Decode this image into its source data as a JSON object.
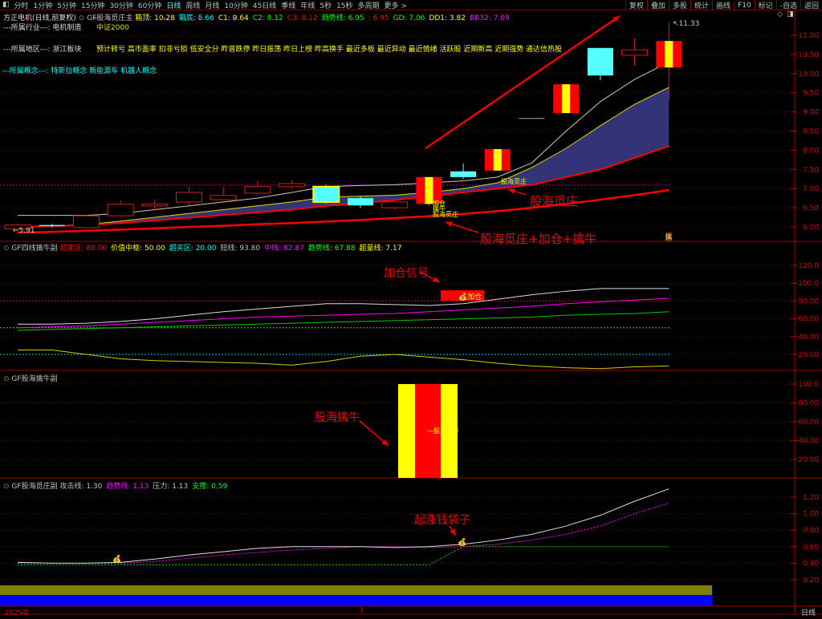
{
  "toolbar": {
    "menu_icon": "panel-toggle-icon",
    "periods": [
      "分时",
      "1分钟",
      "5分钟",
      "15分钟",
      "30分钟",
      "60分钟",
      "日线",
      "周线",
      "月线",
      "10分钟",
      "45日线",
      "季线",
      "年线",
      "5秒",
      "15秒",
      "多周期",
      "更多 >"
    ],
    "active": "日线",
    "right_buttons": [
      "复权",
      "叠加",
      "多股",
      "统计",
      "画线",
      "F10",
      "标记",
      "-自选",
      "返回"
    ]
  },
  "header": {
    "stock": "方正电机(日线,前复权)",
    "indicator": "GF股海觅庄主",
    "values": [
      {
        "label": "箱顶: 10.28",
        "color": "#ffff00"
      },
      {
        "label": "箱底: 5.66",
        "color": "#00ffff"
      },
      {
        "label": "C1: 9.64",
        "color": "#ffff00"
      },
      {
        "label": "C2: 8.12",
        "color": "#00ff00"
      },
      {
        "label": "C3: 8.12",
        "color": "#ff0000"
      },
      {
        "label": "趋势线: 6.95",
        "color": "#00ff00"
      },
      {
        "label": ": 6.95",
        "color": "#ff0000"
      },
      {
        "label": "GD: 7.06",
        "color": "#00ff00"
      },
      {
        "label": "DD1: 3.82",
        "color": "#ffff00"
      },
      {
        "label": "BB32: 7.09",
        "color": "#ff00ff"
      }
    ]
  },
  "info": {
    "industry_label": "---所属行业---:",
    "industry": "电机制造",
    "index": "中证2000",
    "region_label": "---所属地区---:",
    "region": "浙江板块",
    "tags": "预计转亏 高市盈率 扣非亏损 低安全分 昨曾跌停 昨日振荡 昨日上榜 昨高换手 最近多板 最近异动 最近情绪 活跃股 近期新高 近期强势 通达信热股",
    "concept_label": "---所属概念---:",
    "concepts": "特斯拉概念 新能源车 机器人概念"
  },
  "annotations": {
    "main1": "股海觅庄",
    "main2": "股海觅庄+加仓+擒牛",
    "small1": "股海觅庄",
    "small2": "加仓",
    "small3": "擒牛",
    "small4": "股海觅庄",
    "high": "11.33",
    "low": "5.91",
    "sig": "擒",
    "p2": "加仓信号",
    "p2_tag": "加仓",
    "p3": "股海擒牛",
    "p3_mid": "—股海擒牛",
    "p4": "起涨钱袋子"
  },
  "main_axis": [
    "11.00",
    "10.50",
    "10.00",
    "9.50",
    "9.00",
    "8.50",
    "8.00",
    "7.50",
    "7.00",
    "6.50",
    "6.00"
  ],
  "panel2": {
    "title": "GF四线擒牛副",
    "values": [
      {
        "label": "超卖区: 80.00",
        "color": "#ff0000"
      },
      {
        "label": "价值中枢: 50.00",
        "color": "#ffff00"
      },
      {
        "label": "超买区: 20.00",
        "color": "#00ffff"
      },
      {
        "label": "短线: 93.80",
        "color": "#c0c0c0"
      },
      {
        "label": "中线: 82.87",
        "color": "#ff00ff"
      },
      {
        "label": "趋势线: 67.88",
        "color": "#00ff00"
      },
      {
        "label": "超量线: 7.17",
        "color": "#ffff00"
      }
    ],
    "axis": [
      "120.0",
      "100.0",
      "80.00",
      "60.00",
      "40.00",
      "20.00"
    ]
  },
  "panel3": {
    "title": "GF股海擒牛副",
    "axis": [
      "100.0",
      "80.00",
      "60.00",
      "40.00",
      "20.00"
    ]
  },
  "panel4": {
    "title": "GF股海觅庄副",
    "values": [
      {
        "label": "攻击线: 1.30",
        "color": "#c0c0c0"
      },
      {
        "label": "趋势线: 1.13",
        "color": "#ff00ff"
      },
      {
        "label": "压力: 1.13",
        "color": "#c0c0c0"
      },
      {
        "label": "支撑: 0.59",
        "color": "#00ff00"
      }
    ],
    "axis": [
      "1.20",
      "1.00",
      "0.80",
      "0.60",
      "0.40",
      "0.20"
    ]
  },
  "timeline": {
    "year": "2025年",
    "month": "3",
    "period": "日线"
  },
  "chart_data": {
    "type": "candlestick",
    "candles": [
      [
        5.95,
        6.08,
        5.91,
        6.05
      ],
      [
        6.05,
        6.08,
        5.98,
        6.02
      ],
      [
        5.98,
        6.31,
        5.98,
        6.29
      ],
      [
        6.29,
        6.69,
        6.29,
        6.59
      ],
      [
        6.55,
        6.72,
        6.42,
        6.6
      ],
      [
        6.65,
        7.05,
        6.55,
        6.9
      ],
      [
        6.71,
        7.05,
        6.71,
        6.82
      ],
      [
        6.88,
        7.2,
        6.85,
        7.05
      ],
      [
        7.05,
        7.23,
        7.0,
        7.13
      ],
      [
        7.05,
        7.1,
        6.6,
        6.65
      ],
      [
        6.75,
        6.8,
        6.5,
        6.56
      ],
      [
        6.5,
        6.72,
        6.45,
        6.65
      ],
      [
        6.6,
        7.3,
        6.55,
        7.3
      ],
      [
        7.45,
        7.66,
        7.25,
        7.3
      ],
      [
        7.47,
        8.03,
        7.47,
        8.03
      ],
      [
        8.83,
        8.83,
        8.83,
        8.83
      ],
      [
        8.97,
        9.72,
        8.97,
        9.72
      ],
      [
        10.67,
        10.67,
        9.83,
        9.95
      ],
      [
        10.48,
        10.93,
        10.2,
        10.62
      ],
      [
        10.16,
        11.33,
        9.3,
        10.85
      ]
    ],
    "white_line": [
      6.3,
      6.3,
      6.3,
      6.35,
      6.45,
      6.55,
      6.65,
      6.75,
      6.9,
      7.05,
      7.08,
      7.1,
      7.15,
      7.2,
      7.3,
      7.67,
      8.5,
      9.27,
      9.85,
      10.3
    ],
    "yellow_line": [
      6.0,
      6.03,
      6.06,
      6.15,
      6.25,
      6.35,
      6.45,
      6.55,
      6.65,
      6.78,
      6.8,
      6.83,
      6.9,
      7.0,
      7.15,
      7.55,
      8.05,
      8.64,
      9.2,
      9.64
    ],
    "red_upper": [
      6.0,
      6.02,
      6.05,
      6.1,
      6.17,
      6.24,
      6.31,
      6.38,
      6.45,
      6.55,
      6.62,
      6.7,
      6.8,
      6.9,
      7.0,
      7.1,
      7.3,
      7.5,
      7.8,
      8.11
    ],
    "red_lower": [
      5.85,
      5.87,
      5.9,
      5.93,
      5.96,
      6.0,
      6.03,
      6.07,
      6.1,
      6.14,
      6.18,
      6.23,
      6.28,
      6.34,
      6.41,
      6.5,
      6.6,
      6.71,
      6.83,
      6.96
    ],
    "bb32": 7.09,
    "p2_short": [
      54,
      54,
      55,
      57,
      60,
      64,
      68,
      71,
      74,
      77,
      77,
      76,
      75,
      77,
      82,
      87,
      91,
      94,
      94,
      94
    ],
    "p2_mid": [
      50,
      51,
      52,
      54,
      56,
      58,
      60,
      62,
      63,
      64,
      65,
      66,
      68,
      70,
      72,
      74,
      77,
      79,
      81,
      83
    ],
    "p2_trend": [
      47,
      48,
      49,
      50,
      51,
      52,
      53,
      54,
      55,
      56,
      57,
      58,
      59,
      60,
      61,
      62,
      64,
      65,
      66,
      68
    ],
    "p2_vol": [
      25,
      25,
      20,
      15,
      13,
      12,
      11,
      10,
      8,
      12,
      18,
      20,
      17,
      14,
      10,
      7,
      5,
      4,
      6,
      7
    ],
    "p4_attack": [
      0.41,
      0.4,
      0.4,
      0.41,
      0.45,
      0.5,
      0.54,
      0.58,
      0.6,
      0.6,
      0.6,
      0.59,
      0.6,
      0.63,
      0.68,
      0.75,
      0.85,
      0.98,
      1.15,
      1.3
    ],
    "p4_trend": [
      0.4,
      0.4,
      0.4,
      0.4,
      0.42,
      0.46,
      0.5,
      0.53,
      0.56,
      0.58,
      0.6,
      0.6,
      0.59,
      0.6,
      0.63,
      0.68,
      0.75,
      0.85,
      1.0,
      1.13
    ],
    "p4_support": [
      0.38,
      0.38,
      0.38,
      0.38,
      0.38,
      0.38,
      0.38,
      0.38,
      0.38,
      0.38,
      0.38,
      0.38,
      0.38,
      0.6,
      0.6,
      0.6,
      0.6,
      0.6,
      0.6,
      0.6
    ]
  }
}
